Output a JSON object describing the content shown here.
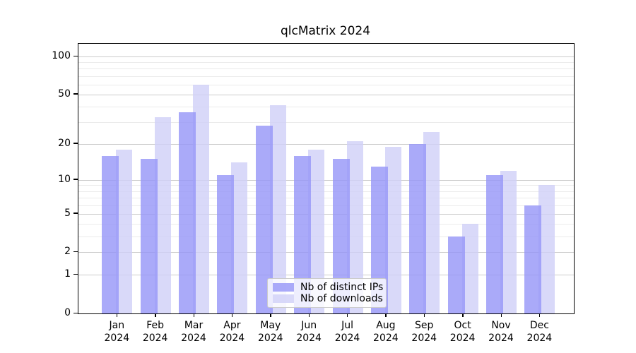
{
  "chart_data": {
    "type": "bar",
    "title": "qlcMatrix 2024",
    "categories": [
      "Jan",
      "Feb",
      "Mar",
      "Apr",
      "May",
      "Jun",
      "Jul",
      "Aug",
      "Sep",
      "Oct",
      "Nov",
      "Dec"
    ],
    "category_year": "2024",
    "series": [
      {
        "name": "Nb of distinct IPs",
        "color": "rgba(149,149,247,0.8)",
        "values": [
          16,
          15,
          36,
          11,
          28,
          16,
          15,
          13,
          20,
          3,
          11,
          6
        ]
      },
      {
        "name": "Nb of downloads",
        "color": "rgba(208,208,248,0.8)",
        "values": [
          18,
          33,
          60,
          14,
          41,
          18,
          21,
          19,
          25,
          4,
          12,
          9
        ]
      }
    ],
    "yscale": "log1p",
    "ylim": [
      0,
      126
    ],
    "yticks": [
      0,
      1,
      2,
      5,
      10,
      20,
      50,
      100
    ],
    "minor_gridlines": [
      3,
      4,
      6,
      7,
      8,
      9,
      30,
      40,
      60,
      70,
      80,
      90
    ],
    "grid": true,
    "legend_position": "lower center"
  },
  "legend": {
    "items": [
      "Nb of distinct IPs",
      "Nb of downloads"
    ]
  }
}
